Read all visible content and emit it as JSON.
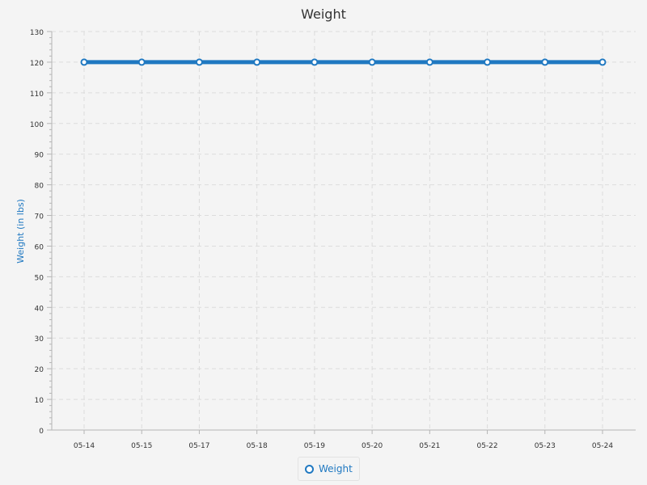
{
  "chart_data": {
    "type": "line",
    "title": "Weight",
    "xlabel": "",
    "ylabel": "Weight (in lbs)",
    "categories": [
      "05-14",
      "05-15",
      "05-17",
      "05-18",
      "05-19",
      "05-20",
      "05-21",
      "05-22",
      "05-23",
      "05-24"
    ],
    "series": [
      {
        "name": "Weight",
        "values": [
          120,
          120,
          120,
          120,
          120,
          120,
          120,
          120,
          120,
          120
        ]
      }
    ],
    "ylim": [
      0,
      130
    ],
    "yticks": [
      0,
      10,
      20,
      30,
      40,
      50,
      60,
      70,
      80,
      90,
      100,
      110,
      120,
      130
    ],
    "grid": true,
    "legend_position": "bottom",
    "colors": {
      "series": "#1f78c1",
      "grid": "#dcdcdc",
      "axis": "#b5b5b5",
      "text": "#333333"
    }
  }
}
